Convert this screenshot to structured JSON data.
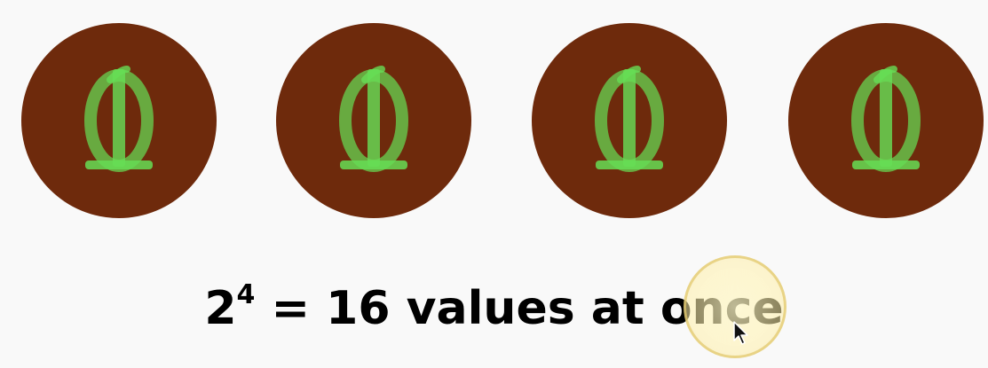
{
  "qubits": [
    {
      "overlay_glyphs": [
        "0",
        "1"
      ]
    },
    {
      "overlay_glyphs": [
        "0",
        "1"
      ]
    },
    {
      "overlay_glyphs": [
        "0",
        "1"
      ]
    },
    {
      "overlay_glyphs": [
        "0",
        "1"
      ]
    }
  ],
  "caption": {
    "base": "2",
    "exponent": "4",
    "rest": " = 16 values at once"
  },
  "colors": {
    "background": "#f9f9f9",
    "qubit_fill": "#6e2a0c",
    "glyph_green": "#66dd55",
    "text": "#000000"
  },
  "icons": {
    "cursor": "mouse-pointer-icon",
    "cursor_highlight": "cursor-highlight-halo"
  }
}
